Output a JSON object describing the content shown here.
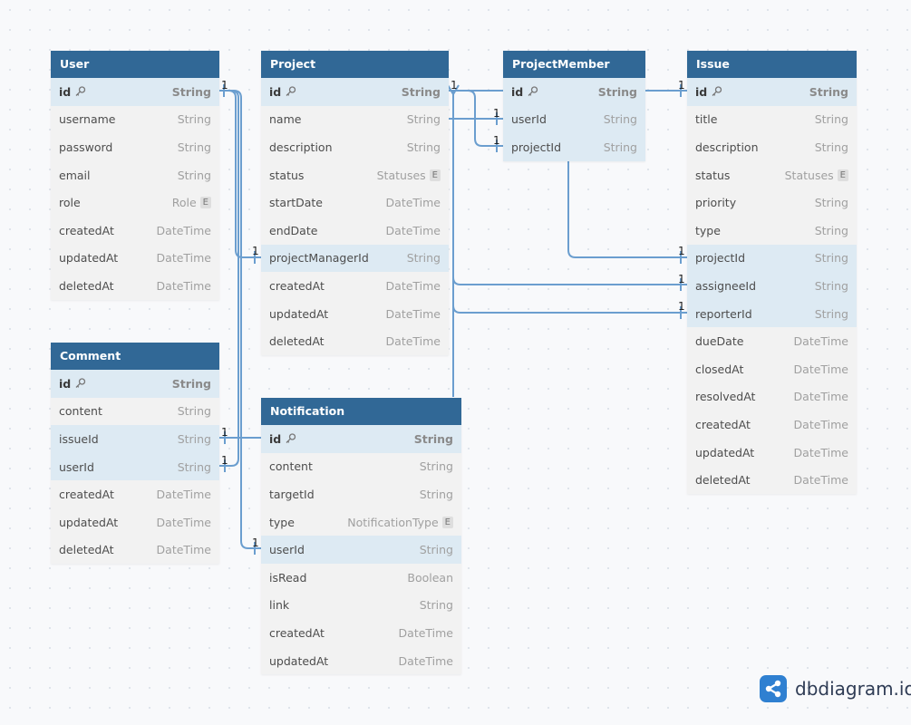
{
  "tables": [
    {
      "name": "User",
      "fields": [
        {
          "name": "id",
          "type": "String",
          "pk": true
        },
        {
          "name": "username",
          "type": "String"
        },
        {
          "name": "password",
          "type": "String"
        },
        {
          "name": "email",
          "type": "String"
        },
        {
          "name": "role",
          "type": "Role",
          "enum": true
        },
        {
          "name": "createdAt",
          "type": "DateTime"
        },
        {
          "name": "updatedAt",
          "type": "DateTime"
        },
        {
          "name": "deletedAt",
          "type": "DateTime"
        }
      ]
    },
    {
      "name": "Project",
      "fields": [
        {
          "name": "id",
          "type": "String",
          "pk": true
        },
        {
          "name": "name",
          "type": "String"
        },
        {
          "name": "description",
          "type": "String"
        },
        {
          "name": "status",
          "type": "Statuses",
          "enum": true
        },
        {
          "name": "startDate",
          "type": "DateTime"
        },
        {
          "name": "endDate",
          "type": "DateTime"
        },
        {
          "name": "projectManagerId",
          "type": "String",
          "highlighted": true
        },
        {
          "name": "createdAt",
          "type": "DateTime"
        },
        {
          "name": "updatedAt",
          "type": "DateTime"
        },
        {
          "name": "deletedAt",
          "type": "DateTime"
        }
      ]
    },
    {
      "name": "ProjectMember",
      "fields": [
        {
          "name": "id",
          "type": "String",
          "pk": true
        },
        {
          "name": "userId",
          "type": "String",
          "highlighted": true
        },
        {
          "name": "projectId",
          "type": "String",
          "highlighted": true
        }
      ]
    },
    {
      "name": "Issue",
      "fields": [
        {
          "name": "id",
          "type": "String",
          "pk": true
        },
        {
          "name": "title",
          "type": "String"
        },
        {
          "name": "description",
          "type": "String"
        },
        {
          "name": "status",
          "type": "Statuses",
          "enum": true
        },
        {
          "name": "priority",
          "type": "String"
        },
        {
          "name": "type",
          "type": "String"
        },
        {
          "name": "projectId",
          "type": "String",
          "highlighted": true
        },
        {
          "name": "assigneeId",
          "type": "String",
          "highlighted": true
        },
        {
          "name": "reporterId",
          "type": "String",
          "highlighted": true
        },
        {
          "name": "dueDate",
          "type": "DateTime"
        },
        {
          "name": "closedAt",
          "type": "DateTime"
        },
        {
          "name": "resolvedAt",
          "type": "DateTime"
        },
        {
          "name": "createdAt",
          "type": "DateTime"
        },
        {
          "name": "updatedAt",
          "type": "DateTime"
        },
        {
          "name": "deletedAt",
          "type": "DateTime"
        }
      ]
    },
    {
      "name": "Comment",
      "fields": [
        {
          "name": "id",
          "type": "String",
          "pk": true
        },
        {
          "name": "content",
          "type": "String"
        },
        {
          "name": "issueId",
          "type": "String",
          "highlighted": true
        },
        {
          "name": "userId",
          "type": "String",
          "highlighted": true
        },
        {
          "name": "createdAt",
          "type": "DateTime"
        },
        {
          "name": "updatedAt",
          "type": "DateTime"
        },
        {
          "name": "deletedAt",
          "type": "DateTime"
        }
      ]
    },
    {
      "name": "Notification",
      "fields": [
        {
          "name": "id",
          "type": "String",
          "pk": true
        },
        {
          "name": "content",
          "type": "String"
        },
        {
          "name": "targetId",
          "type": "String"
        },
        {
          "name": "type",
          "type": "NotificationType",
          "enum": true
        },
        {
          "name": "userId",
          "type": "String",
          "highlighted": true
        },
        {
          "name": "isRead",
          "type": "Boolean"
        },
        {
          "name": "link",
          "type": "String"
        },
        {
          "name": "createdAt",
          "type": "DateTime"
        },
        {
          "name": "updatedAt",
          "type": "DateTime"
        }
      ]
    }
  ],
  "enum_badge": "E",
  "relation_label": "1",
  "relation_labels": [
    "1",
    "1",
    "1",
    "1",
    "1",
    "1",
    "1",
    "1",
    "1",
    "1",
    "1",
    "1"
  ],
  "branding": {
    "text": "dbdiagram.io"
  },
  "colors": {
    "header": "#316896",
    "highlight_row": "#ddeaf3",
    "connector": "#6b9ecf",
    "logo": "#2f80d1"
  }
}
